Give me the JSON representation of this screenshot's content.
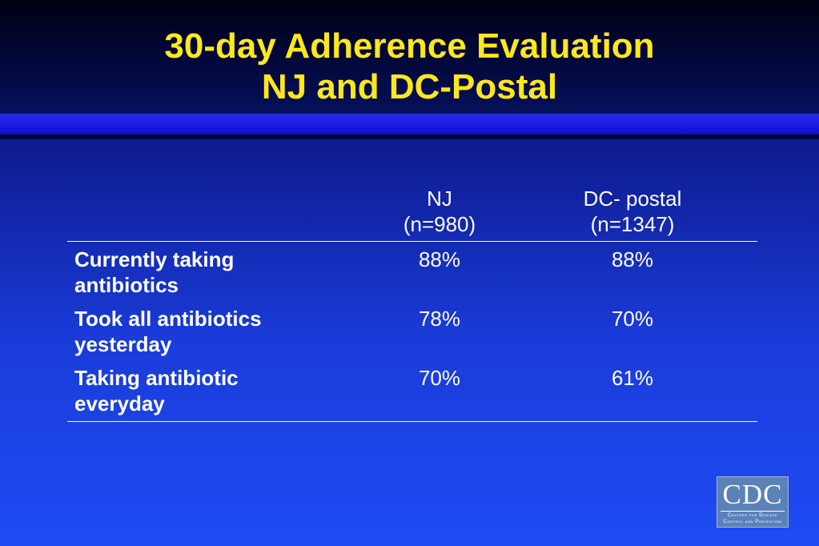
{
  "title": {
    "line1": "30-day Adherence Evaluation",
    "line2": "NJ and DC-Postal"
  },
  "table": {
    "columns": [
      {
        "name": "NJ",
        "n": "(n=980)"
      },
      {
        "name": "DC- postal",
        "n": "(n=1347)"
      }
    ],
    "rows": [
      {
        "label_line1": "Currently taking",
        "label_line2": "antibiotics",
        "values": [
          "88%",
          "88%"
        ]
      },
      {
        "label_line1": "Took all antibiotics",
        "label_line2": "yesterday",
        "values": [
          "78%",
          "70%"
        ]
      },
      {
        "label_line1": "Taking antibiotic",
        "label_line2": "everyday",
        "values": [
          "70%",
          "61%"
        ]
      }
    ]
  },
  "logo": {
    "letters": "CDC",
    "sub_line1": "Centers for Disease",
    "sub_line2": "Control and Prevention"
  },
  "colors": {
    "title": "#ffe81a",
    "text": "#ffffff",
    "background_top": "#0a0f5a",
    "background_bottom": "#1f4cf5",
    "bar": "#1515e0",
    "logo_bg": "#5a82b8"
  }
}
